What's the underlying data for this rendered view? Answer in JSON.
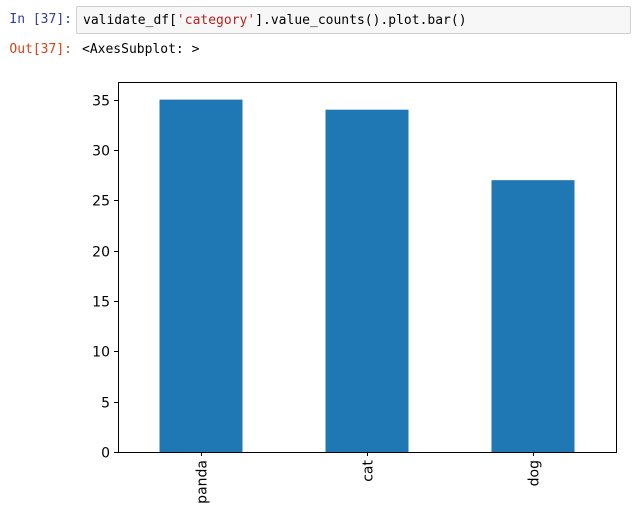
{
  "input_cell": {
    "prompt": "In [37]:",
    "code_prefix": "validate_df[",
    "code_string": "'category'",
    "code_suffix": "].value_counts().plot.bar()"
  },
  "output_cell": {
    "prompt": "Out[37]:",
    "text": "<AxesSubplot: >"
  },
  "colors": {
    "bar": "#1f77b4",
    "prompt_in": "#303f9f",
    "prompt_out": "#d84315",
    "string_literal": "#ba2121"
  },
  "chart_data": {
    "type": "bar",
    "categories": [
      "panda",
      "cat",
      "dog"
    ],
    "values": [
      35,
      34,
      27
    ],
    "title": "",
    "xlabel": "",
    "ylabel": "",
    "ylim": [
      0,
      36.75
    ],
    "yticks": [
      0,
      5,
      10,
      15,
      20,
      25,
      30,
      35
    ],
    "grid": false,
    "legend": "none"
  }
}
